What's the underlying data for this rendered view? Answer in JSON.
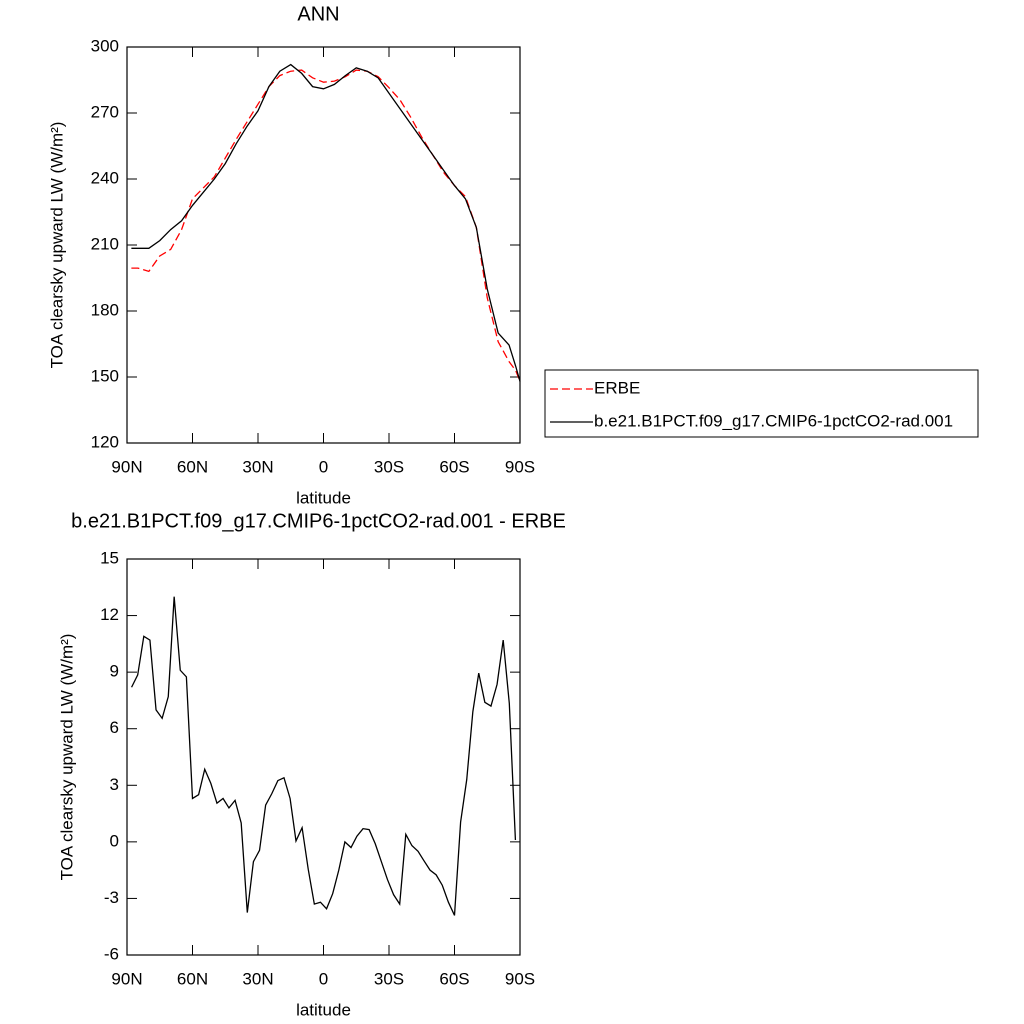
{
  "chart_data": [
    {
      "type": "line",
      "title": "ANN",
      "x_label": "latitude",
      "y_label": "TOA clearsky upward LW (W/m²)",
      "x": [
        88,
        85,
        80,
        75,
        70,
        65,
        60,
        55,
        50,
        45,
        40,
        35,
        30,
        25,
        20,
        15,
        10,
        5,
        0,
        -5,
        -10,
        -15,
        -20,
        -25,
        -30,
        -35,
        -40,
        -45,
        -50,
        -55,
        -60,
        -65,
        -70,
        -75,
        -80,
        -85,
        -88,
        -90
      ],
      "series": [
        {
          "name": "ERBE",
          "color": "#ff0000",
          "dashed": true,
          "values": [
            199.5,
            199.5,
            198,
            205,
            208,
            217,
            231,
            236,
            241,
            249.5,
            258,
            266,
            274,
            282,
            287,
            289,
            289.5,
            286,
            284,
            284.5,
            286.5,
            289.5,
            289,
            286.5,
            281.5,
            276,
            268,
            259,
            251,
            243,
            237,
            232,
            218,
            186,
            166,
            157,
            153,
            148
          ]
        },
        {
          "name": "b.e21.B1PCT.f09_g17.CMIP6-1pctCO2-rad.001",
          "color": "#000000",
          "dashed": false,
          "values": [
            208.5,
            208.5,
            208.5,
            212,
            217,
            221,
            228,
            234,
            240,
            247,
            256,
            264,
            271,
            282,
            289,
            292,
            288,
            282,
            281,
            283,
            287,
            290.5,
            289,
            286,
            279,
            272,
            265,
            258,
            251,
            244,
            237,
            231,
            218,
            190,
            170,
            164.5,
            155,
            148
          ]
        }
      ],
      "xlim": [
        90,
        -90
      ],
      "xticks": [
        {
          "value": 90,
          "label": "90N"
        },
        {
          "value": 60,
          "label": "60N"
        },
        {
          "value": 30,
          "label": "30N"
        },
        0,
        {
          "value": -30,
          "label": "30S"
        },
        {
          "value": -60,
          "label": "60S"
        },
        {
          "value": -90,
          "label": "90S"
        }
      ],
      "ylim": [
        120,
        300
      ],
      "yticks": [
        120,
        150,
        180,
        210,
        240,
        270,
        300
      ],
      "grid": false,
      "legend": "right"
    },
    {
      "type": "line",
      "title": "b.e21.B1PCT.f09_g17.CMIP6-1pctCO2-rad.001 - ERBE",
      "x_label": "latitude",
      "y_label": "TOA clearsky upward LW (W/m²)",
      "x": [
        87.9,
        85.1,
        82.3,
        79.5,
        76.7,
        73.9,
        71.1,
        68.4,
        65.6,
        62.8,
        60.0,
        57.2,
        54.4,
        51.6,
        48.8,
        46.0,
        43.3,
        40.5,
        37.7,
        34.9,
        32.1,
        29.3,
        26.5,
        23.7,
        20.9,
        18.1,
        15.3,
        12.6,
        9.8,
        7.0,
        4.2,
        1.4,
        -1.4,
        -4.2,
        -7.0,
        -9.8,
        -12.6,
        -15.3,
        -18.1,
        -20.9,
        -23.7,
        -26.5,
        -29.3,
        -32.1,
        -34.9,
        -37.7,
        -40.5,
        -43.3,
        -46.0,
        -48.8,
        -51.6,
        -54.4,
        -57.2,
        -60.0,
        -62.8,
        -65.6,
        -68.4,
        -71.1,
        -73.9,
        -76.7,
        -79.5,
        -82.3,
        -85.1,
        -87.9
      ],
      "values": [
        8.2,
        8.85,
        10.9,
        10.7,
        7.0,
        6.55,
        7.7,
        13.0,
        9.1,
        8.75,
        2.3,
        2.5,
        3.85,
        3.1,
        2.05,
        2.3,
        1.8,
        2.2,
        1.0,
        -3.75,
        -1.05,
        -0.45,
        1.95,
        2.55,
        3.25,
        3.4,
        2.3,
        0.05,
        0.75,
        -1.45,
        -3.3,
        -3.2,
        -3.55,
        -2.75,
        -1.5,
        0,
        -0.3,
        0.3,
        0.7,
        0.65,
        -0.1,
        -1.05,
        -2.0,
        -2.8,
        -3.3,
        0.4,
        -0.2,
        -0.5,
        -1.0,
        -1.5,
        -1.75,
        -2.3,
        -3.2,
        -3.9,
        1.05,
        3.3,
        6.9,
        8.95,
        7.4,
        7.2,
        8.35,
        10.7,
        7.35,
        0.1
      ],
      "color": "#000000",
      "xlim": [
        90,
        -90
      ],
      "xticks": [
        {
          "value": 90,
          "label": "90N"
        },
        {
          "value": 60,
          "label": "60N"
        },
        {
          "value": 30,
          "label": "30N"
        },
        0,
        {
          "value": -30,
          "label": "30S"
        },
        {
          "value": -60,
          "label": "60S"
        },
        {
          "value": -90,
          "label": "90S"
        }
      ],
      "ylim": [
        -6,
        15
      ],
      "yticks": [
        -6,
        -3,
        0,
        3,
        6,
        9,
        12,
        15
      ],
      "grid": false
    }
  ]
}
